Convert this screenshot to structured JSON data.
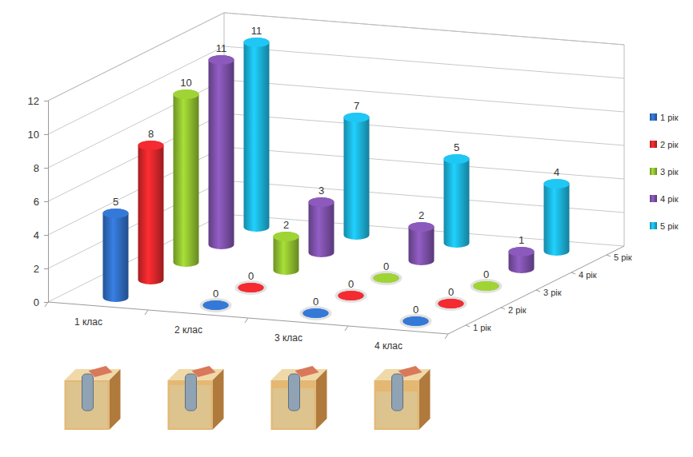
{
  "chart_data": {
    "type": "bar",
    "categories": [
      "1 клас",
      "2 клас",
      "3 клас",
      "4 клас"
    ],
    "series": [
      {
        "name": "1 рік",
        "color": "#2f6bbf",
        "values": [
          5,
          0,
          0,
          0
        ]
      },
      {
        "name": "2 рік",
        "color": "#d7262a",
        "values": [
          8,
          0,
          0,
          0
        ]
      },
      {
        "name": "3 рік",
        "color": "#8dbb2f",
        "values": [
          10,
          2,
          0,
          0
        ]
      },
      {
        "name": "4 рік",
        "color": "#7b4fa6",
        "values": [
          11,
          3,
          2,
          1
        ]
      },
      {
        "name": "5 рік",
        "color": "#1bb0d8",
        "values": [
          11,
          7,
          5,
          4
        ]
      }
    ],
    "ylim": [
      0,
      12
    ],
    "yticks": [
      0,
      2,
      4,
      6,
      8,
      10,
      12
    ],
    "grid": true,
    "legend": "right",
    "data_labels": true
  }
}
